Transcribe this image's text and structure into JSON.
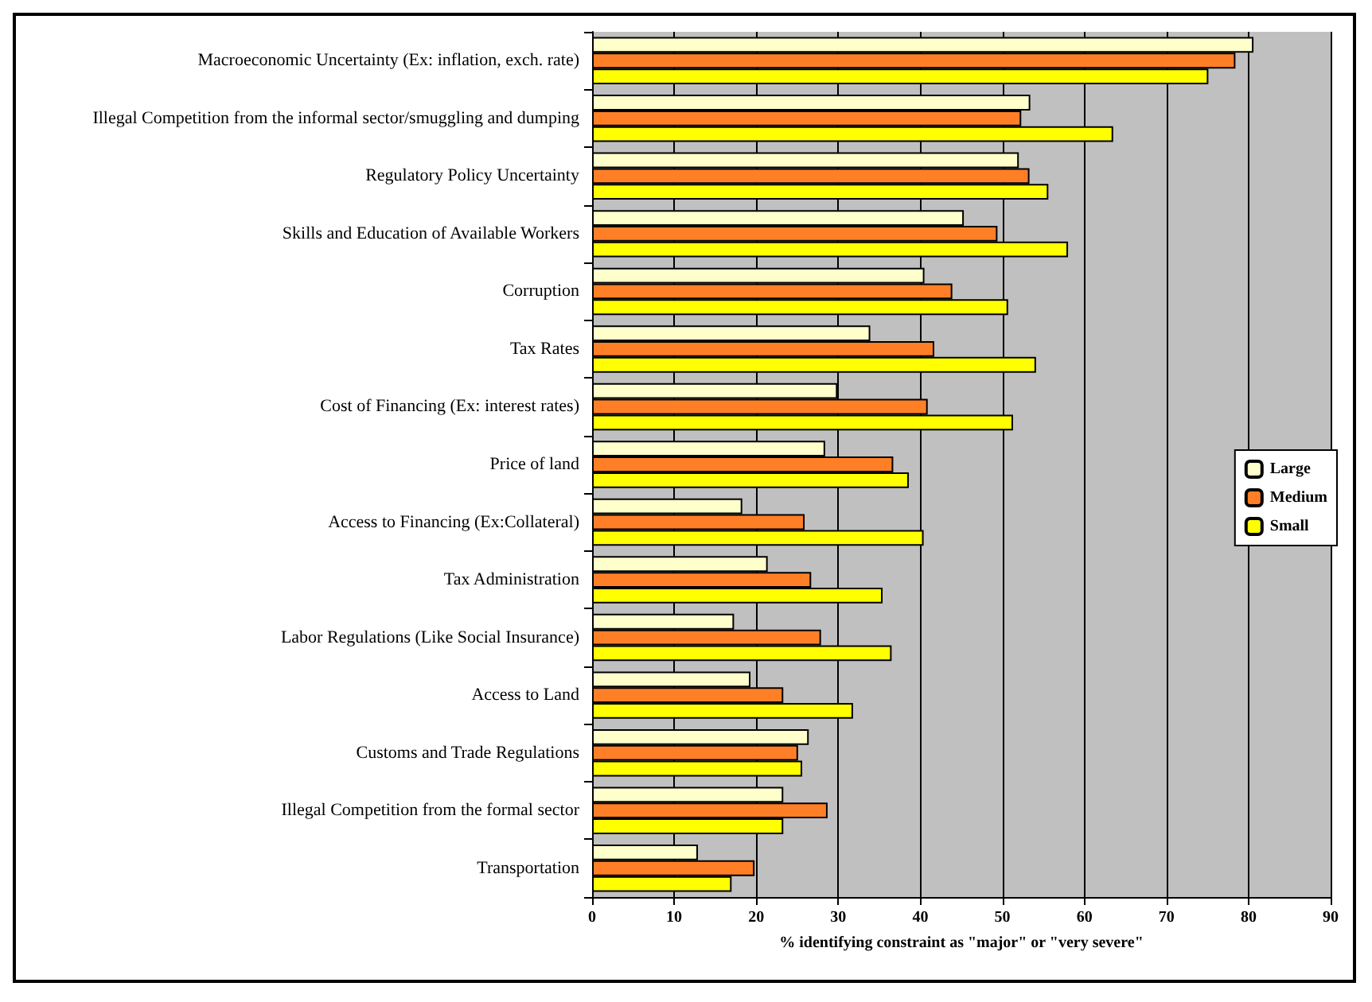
{
  "chart_data": {
    "type": "bar",
    "orientation": "horizontal",
    "xlabel": "% identifying constraint as \"major\" or \"very severe\"",
    "categories": [
      "Macroeconomic Uncertainty (Ex: inflation, exch. rate)",
      "Illegal Competition from the informal sector/smuggling and dumping",
      "Regulatory Policy Uncertainty",
      "Skills and Education of Available Workers",
      "Corruption",
      "Tax Rates",
      "Cost of Financing (Ex: interest rates)",
      "Price of land",
      "Access to Financing (Ex:Collateral)",
      "Tax Administration",
      "Labor Regulations (Like Social Insurance)",
      "Access to Land",
      "Customs and Trade Regulations",
      "Illegal Competition from the formal sector",
      "Transportation"
    ],
    "series": [
      {
        "name": "Large",
        "color": "#ffffcc",
        "values": [
          80.6,
          53.4,
          52.0,
          45.3,
          40.5,
          33.9,
          29.9,
          28.4,
          18.3,
          21.4,
          17.3,
          19.3,
          26.4,
          23.3,
          12.9
        ]
      },
      {
        "name": "Medium",
        "color": "#ff7f27",
        "values": [
          78.4,
          52.3,
          53.3,
          49.4,
          43.9,
          41.7,
          40.9,
          36.7,
          25.9,
          26.7,
          27.9,
          23.3,
          25.1,
          28.7,
          19.8
        ]
      },
      {
        "name": "Small",
        "color": "#ffff00",
        "values": [
          75.1,
          63.5,
          55.6,
          58.0,
          50.7,
          54.1,
          51.3,
          38.6,
          40.4,
          35.4,
          36.5,
          31.8,
          25.6,
          23.3,
          17.0
        ]
      }
    ],
    "xlim": [
      0,
      90
    ],
    "xticks": [
      0,
      10,
      20,
      30,
      40,
      50,
      60,
      70,
      80,
      90
    ],
    "grid": "x",
    "legend": "right"
  }
}
